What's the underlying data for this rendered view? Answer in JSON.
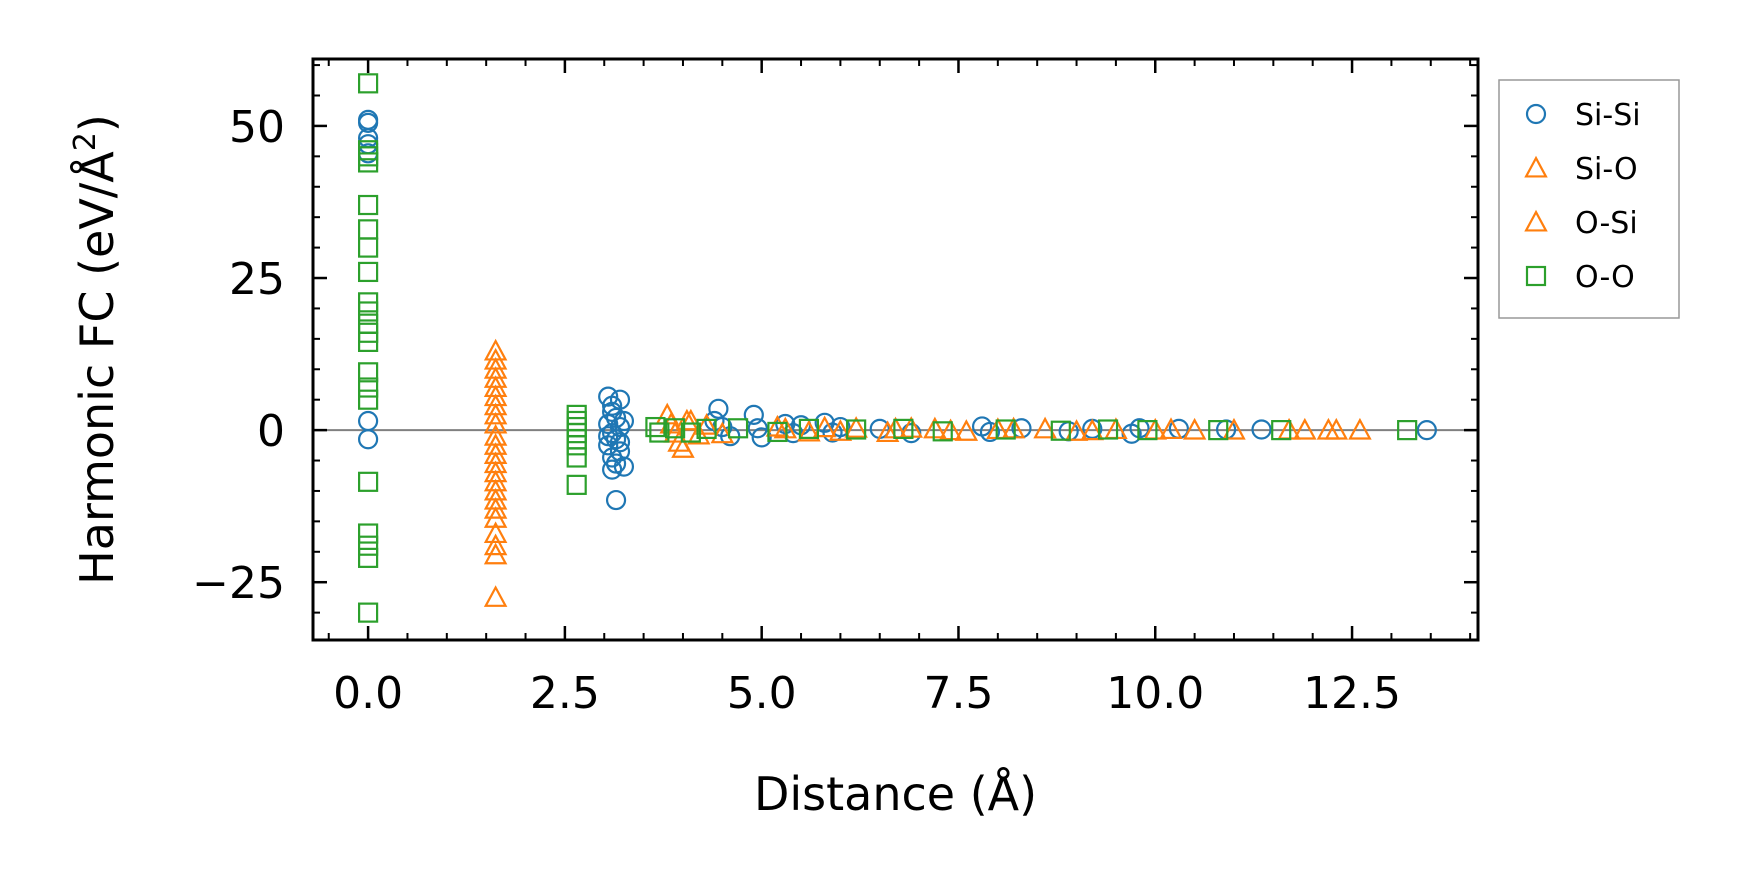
{
  "chart_data": {
    "type": "scatter",
    "title": "",
    "xlabel": "Distance (Å)",
    "ylabel_main": "Harmonic FC (eV/Å",
    "ylabel_sup": "2",
    "ylabel_close": ")",
    "xlim": [
      -0.7,
      14.1
    ],
    "ylim": [
      -34.5,
      61
    ],
    "xticks": [
      0.0,
      2.5,
      5.0,
      7.5,
      10.0,
      12.5
    ],
    "xtick_labels": [
      "0.0",
      "2.5",
      "5.0",
      "7.5",
      "10.0",
      "12.5"
    ],
    "yticks": [
      -25,
      0,
      25,
      50
    ],
    "ytick_labels": [
      "−25",
      "0",
      "25",
      "50"
    ],
    "zero_line": true,
    "grid": false,
    "legend_position": "outside-right-top",
    "colors": {
      "blue": "#1f77b4",
      "orange": "#ff7f0e",
      "green": "#2ca02c",
      "zero": "#808080"
    },
    "series": [
      {
        "name": "Si-Si",
        "marker": "circle",
        "color": "#1f77b4",
        "points": [
          [
            0.0,
            51
          ],
          [
            0.0,
            50.5
          ],
          [
            0.0,
            48
          ],
          [
            0.0,
            47
          ],
          [
            0.0,
            45.5
          ],
          [
            0.0,
            1.5
          ],
          [
            0.0,
            -1.5
          ],
          [
            3.05,
            5.5
          ],
          [
            3.1,
            4
          ],
          [
            3.2,
            5
          ],
          [
            3.1,
            3
          ],
          [
            3.15,
            2
          ],
          [
            3.05,
            1
          ],
          [
            3.2,
            0.5
          ],
          [
            3.1,
            -0.5
          ],
          [
            3.15,
            -1.5
          ],
          [
            3.05,
            -2.5
          ],
          [
            3.2,
            -3.5
          ],
          [
            3.1,
            -4.5
          ],
          [
            3.15,
            -5.5
          ],
          [
            3.1,
            -6.5
          ],
          [
            3.2,
            -2
          ],
          [
            3.05,
            -1
          ],
          [
            3.25,
            1.5
          ],
          [
            3.25,
            -6
          ],
          [
            3.15,
            -11.5
          ],
          [
            4.45,
            3.5
          ],
          [
            4.4,
            1.5
          ],
          [
            4.5,
            0.5
          ],
          [
            4.6,
            -1
          ],
          [
            4.9,
            2.5
          ],
          [
            4.95,
            0.3
          ],
          [
            5.0,
            -1.2
          ],
          [
            5.3,
            1
          ],
          [
            5.4,
            -0.5
          ],
          [
            5.5,
            0.8
          ],
          [
            5.8,
            1.2
          ],
          [
            5.9,
            -0.4
          ],
          [
            6.0,
            0.5
          ],
          [
            6.5,
            0.2
          ],
          [
            6.9,
            -0.5
          ],
          [
            7.8,
            0.6
          ],
          [
            7.9,
            -0.3
          ],
          [
            8.3,
            0.3
          ],
          [
            8.9,
            -0.2
          ],
          [
            9.2,
            0.2
          ],
          [
            9.7,
            -0.6
          ],
          [
            9.8,
            0.3
          ],
          [
            10.3,
            0.2
          ],
          [
            10.9,
            0.1
          ],
          [
            11.35,
            0.1
          ],
          [
            13.45,
            0.0
          ]
        ]
      },
      {
        "name": "Si-O",
        "marker": "triangle",
        "color": "#ff7f0e",
        "points": [
          [
            1.62,
            13
          ],
          [
            1.62,
            11.5
          ],
          [
            1.62,
            10
          ],
          [
            1.62,
            8.5
          ],
          [
            1.62,
            7
          ],
          [
            1.62,
            5.5
          ],
          [
            1.62,
            4
          ],
          [
            1.62,
            2.5
          ],
          [
            1.62,
            1
          ],
          [
            1.62,
            -1
          ],
          [
            1.62,
            -2.5
          ],
          [
            1.62,
            -4
          ],
          [
            1.62,
            -5.5
          ],
          [
            1.62,
            -7
          ],
          [
            1.62,
            -8.5
          ],
          [
            1.62,
            -10
          ],
          [
            1.62,
            -11.5
          ],
          [
            1.62,
            -13
          ],
          [
            1.62,
            -14.5
          ],
          [
            1.62,
            -17
          ],
          [
            1.62,
            -19
          ],
          [
            1.62,
            -20.5
          ],
          [
            1.62,
            -27.5
          ],
          [
            3.8,
            2.5
          ],
          [
            3.85,
            1
          ],
          [
            3.9,
            -0.5
          ],
          [
            3.95,
            -2
          ],
          [
            4.0,
            -3
          ],
          [
            4.05,
            1.5
          ],
          [
            4.2,
            -0.8
          ],
          [
            4.3,
            0.8
          ],
          [
            5.2,
            0.5
          ],
          [
            5.6,
            -0.3
          ],
          [
            5.8,
            0.4
          ],
          [
            6.2,
            0.3
          ],
          [
            6.6,
            -0.4
          ],
          [
            6.9,
            0.3
          ],
          [
            7.2,
            0.2
          ],
          [
            7.6,
            -0.2
          ],
          [
            8.0,
            0.1
          ],
          [
            8.6,
            0.2
          ],
          [
            9.0,
            -0.2
          ],
          [
            9.5,
            0.1
          ],
          [
            10.0,
            0.0
          ],
          [
            10.5,
            0.0
          ],
          [
            11.0,
            0.0
          ],
          [
            11.9,
            0.0
          ],
          [
            12.2,
            0.0
          ],
          [
            12.6,
            0.0
          ]
        ]
      },
      {
        "name": "O-Si",
        "marker": "triangle",
        "color": "#ff7f0e",
        "points": [
          [
            4.1,
            1.5
          ],
          [
            4.5,
            -0.6
          ],
          [
            5.3,
            0.2
          ],
          [
            6.0,
            -0.2
          ],
          [
            6.7,
            0.2
          ],
          [
            7.4,
            -0.1
          ],
          [
            8.2,
            0.2
          ],
          [
            9.2,
            -0.1
          ],
          [
            10.2,
            0.1
          ],
          [
            11.7,
            0.0
          ],
          [
            12.3,
            0.0
          ]
        ]
      },
      {
        "name": "O-O",
        "marker": "square",
        "color": "#2ca02c",
        "points": [
          [
            0.0,
            57
          ],
          [
            0.0,
            46
          ],
          [
            0.0,
            45
          ],
          [
            0.0,
            44
          ],
          [
            0.0,
            37
          ],
          [
            0.0,
            33
          ],
          [
            0.0,
            30
          ],
          [
            0.0,
            26
          ],
          [
            0.0,
            21
          ],
          [
            0.0,
            19.5
          ],
          [
            0.0,
            17.5
          ],
          [
            0.0,
            16
          ],
          [
            0.0,
            14.5
          ],
          [
            0.0,
            9.5
          ],
          [
            0.0,
            7
          ],
          [
            0.0,
            5
          ],
          [
            0.0,
            -8.5
          ],
          [
            0.0,
            -17
          ],
          [
            0.0,
            -19
          ],
          [
            0.0,
            -21
          ],
          [
            0.0,
            -30
          ],
          [
            2.65,
            2.5
          ],
          [
            2.65,
            1.5
          ],
          [
            2.65,
            0.5
          ],
          [
            2.65,
            -0.5
          ],
          [
            2.65,
            -1.5
          ],
          [
            2.65,
            -2.5
          ],
          [
            2.65,
            -4.5
          ],
          [
            2.65,
            -9
          ],
          [
            3.65,
            0.5
          ],
          [
            3.7,
            -0.4
          ],
          [
            3.9,
            0.3
          ],
          [
            4.1,
            -0.4
          ],
          [
            4.3,
            0.2
          ],
          [
            4.7,
            0.3
          ],
          [
            5.2,
            -0.3
          ],
          [
            5.6,
            0.2
          ],
          [
            6.2,
            0.1
          ],
          [
            6.8,
            0.2
          ],
          [
            7.3,
            -0.2
          ],
          [
            8.1,
            0.1
          ],
          [
            8.8,
            -0.1
          ],
          [
            9.4,
            0.1
          ],
          [
            9.9,
            0.0
          ],
          [
            10.8,
            0.0
          ],
          [
            11.6,
            0.0
          ],
          [
            13.2,
            0.0
          ]
        ]
      }
    ]
  }
}
